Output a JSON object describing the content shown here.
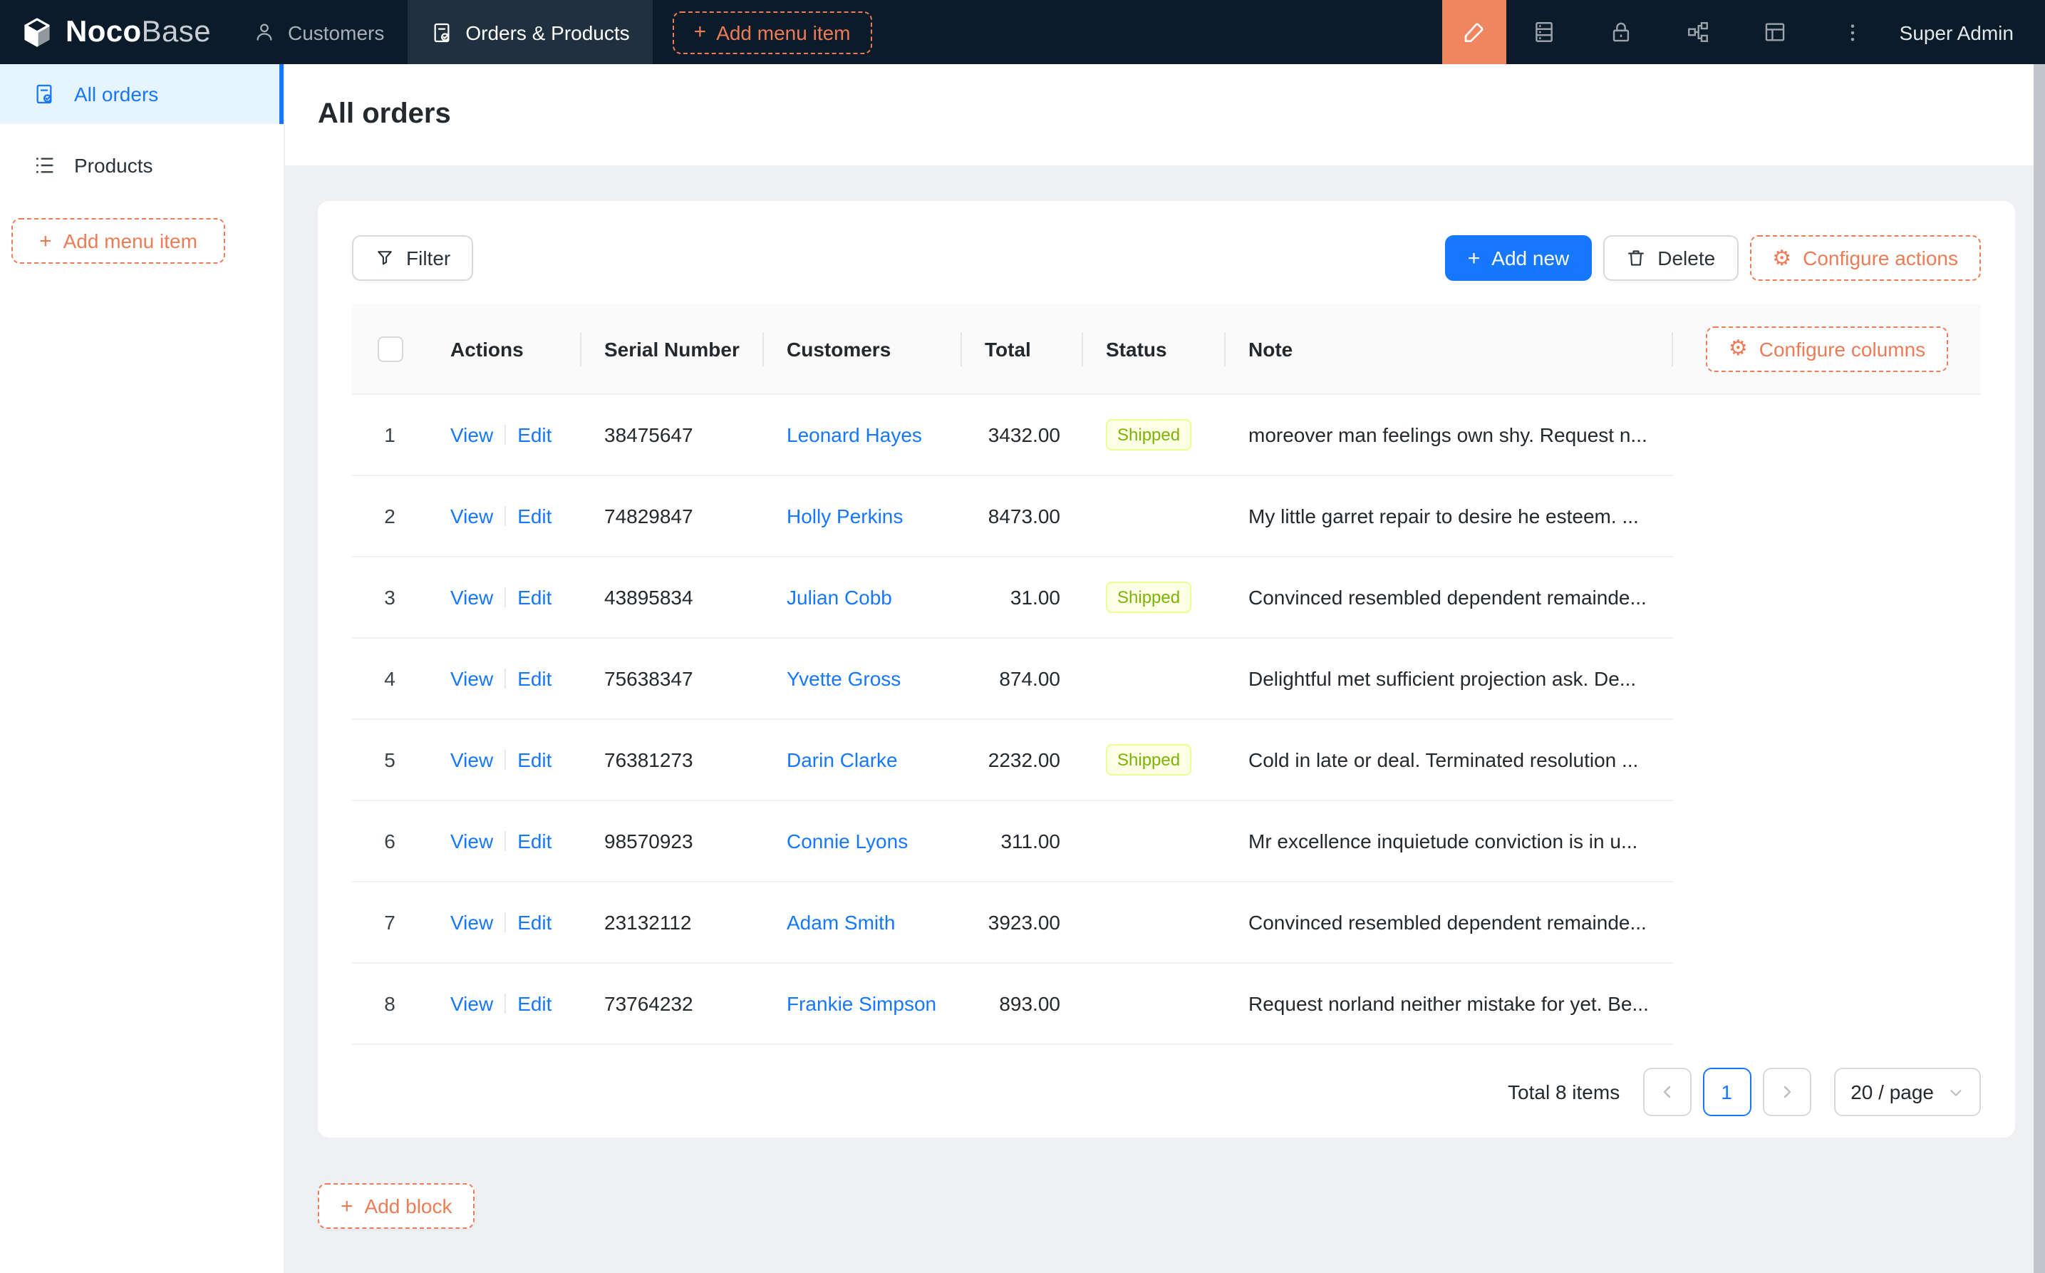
{
  "navbar": {
    "logo": {
      "text_bold": "Noco",
      "text_light": "Base"
    },
    "tabs": [
      {
        "label": "Customers"
      },
      {
        "label": "Orders & Products"
      }
    ],
    "add_menu_item_label": "Add menu item",
    "plus_glyph": "+",
    "gear_glyph": "⚙",
    "user": "Super Admin"
  },
  "sidebar": {
    "items": [
      {
        "label": "All orders"
      },
      {
        "label": "Products"
      }
    ],
    "add_menu_item_label": "Add menu item"
  },
  "page": {
    "title": "All orders"
  },
  "toolbar": {
    "filter": "Filter",
    "add_new": "Add new",
    "delete": "Delete",
    "configure_actions": "Configure actions"
  },
  "table": {
    "configure_columns": "Configure columns",
    "columns": [
      "Actions",
      "Serial Number",
      "Customers",
      "Total",
      "Status",
      "Note"
    ],
    "action_labels": {
      "view": "View",
      "edit": "Edit"
    },
    "rows": [
      {
        "index": "1",
        "serial": "38475647",
        "customer": "Leonard Hayes",
        "total": "3432.00",
        "status": "Shipped",
        "note": "moreover man feelings own shy. Request n..."
      },
      {
        "index": "2",
        "serial": "74829847",
        "customer": "Holly Perkins",
        "total": "8473.00",
        "status": "",
        "note": "My little garret repair to desire he esteem. ..."
      },
      {
        "index": "3",
        "serial": "43895834",
        "customer": "Julian Cobb",
        "total": "31.00",
        "status": "Shipped",
        "note": "Convinced resembled dependent remainde..."
      },
      {
        "index": "4",
        "serial": "75638347",
        "customer": "Yvette Gross",
        "total": "874.00",
        "status": "",
        "note": "Delightful met sufficient projection ask. De..."
      },
      {
        "index": "5",
        "serial": "76381273",
        "customer": "Darin Clarke",
        "total": "2232.00",
        "status": "Shipped",
        "note": "Cold in late or deal. Terminated resolution ..."
      },
      {
        "index": "6",
        "serial": "98570923",
        "customer": "Connie Lyons",
        "total": "311.00",
        "status": "",
        "note": "Mr excellence inquietude conviction is in u..."
      },
      {
        "index": "7",
        "serial": "23132112",
        "customer": "Adam Smith",
        "total": "3923.00",
        "status": "",
        "note": "Convinced resembled dependent remainde..."
      },
      {
        "index": "8",
        "serial": "73764232",
        "customer": "Frankie Simpson",
        "total": "893.00",
        "status": "",
        "note": "Request norland neither mistake for yet. Be..."
      }
    ]
  },
  "pagination": {
    "total": "Total 8 items",
    "page": "1",
    "page_size": "20 / page"
  },
  "footer": {
    "add_block": "Add block"
  },
  "colors": {
    "accent_blue": "#1677ff",
    "designer_orange": "#ed7c56",
    "designer_square_bg": "#ef8660",
    "navbar_bg": "#0c1b29",
    "status_tag_bg": "#fcffe6",
    "status_tag_border": "#eaff8f",
    "status_tag_text": "#7cb305"
  }
}
